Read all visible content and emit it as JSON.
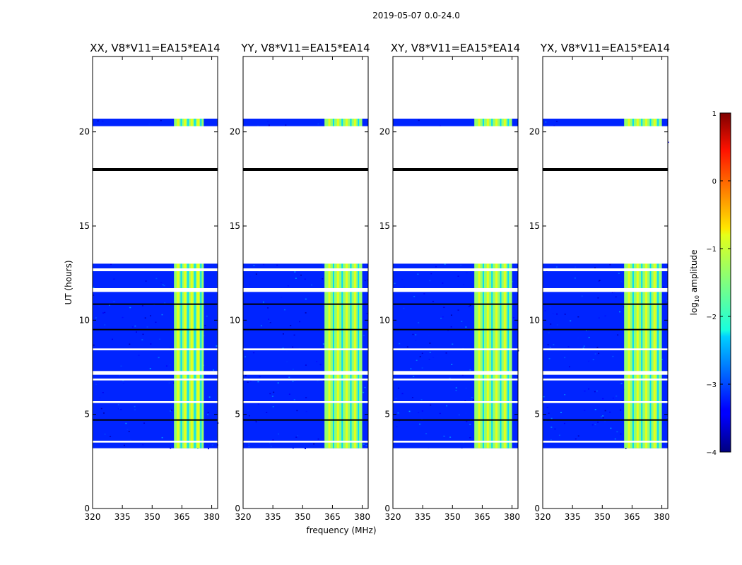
{
  "chart_data": {
    "type": "heatmap",
    "suptitle": "2019-05-07 0.0-24.0",
    "xlabel": "frequency (MHz)",
    "ylabel": "UT (hours)",
    "xlim": [
      320,
      383
    ],
    "ylim": [
      0,
      24
    ],
    "xticks": [
      320,
      335,
      350,
      365,
      380
    ],
    "yticks": [
      0,
      5,
      10,
      15,
      20
    ],
    "colorbar": {
      "label": "log10 amplitude",
      "range": [
        -4,
        1
      ],
      "ticks": [
        1,
        0,
        -1,
        -2,
        -3,
        -4
      ],
      "colormap": "jet"
    },
    "data_window_hours": [
      3.2,
      20.7
    ],
    "high_amplitude_band_mhz": [
      361,
      380
    ],
    "background_log_amplitude": -3.2,
    "band_log_amplitude": -1.4,
    "black_flag_lines_hours": [
      18.0,
      10.85,
      9.5,
      4.7
    ],
    "white_gap_hours": [
      [
        13.0,
        20.3
      ],
      [
        12.6,
        12.75
      ],
      [
        11.5,
        11.7
      ],
      [
        8.4,
        8.5
      ],
      [
        7.1,
        7.3
      ],
      [
        6.8,
        6.9
      ],
      [
        5.6,
        5.7
      ],
      [
        3.5,
        3.6
      ]
    ],
    "panels": [
      {
        "title": "XX, V8*V11=EA15*EA14",
        "band_mhz": [
          361,
          376
        ]
      },
      {
        "title": "YY, V8*V11=EA15*EA14",
        "band_mhz": [
          361,
          380
        ]
      },
      {
        "title": "XY, V8*V11=EA15*EA14",
        "band_mhz": [
          361,
          380
        ]
      },
      {
        "title": "YX, V8*V11=EA15*EA14",
        "band_mhz": [
          361,
          380
        ]
      }
    ]
  }
}
